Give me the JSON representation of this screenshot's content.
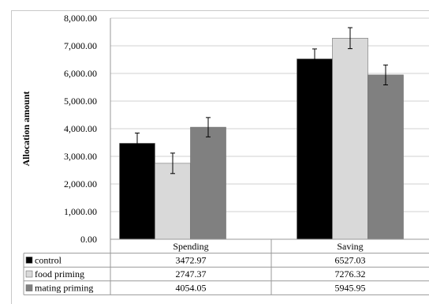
{
  "chart_data": {
    "type": "bar",
    "title": "",
    "xlabel": "",
    "ylabel": "Allocation amount",
    "ylim": [
      0,
      8000
    ],
    "y_ticks": [
      "0.00",
      "1,000.00",
      "2,000.00",
      "3,000.00",
      "4,000.00",
      "5,000.00",
      "6,000.00",
      "7,000.00",
      "8,000.00"
    ],
    "y_tick_values": [
      0,
      1000,
      2000,
      3000,
      4000,
      5000,
      6000,
      7000,
      8000
    ],
    "categories": [
      "Spending",
      "Saving"
    ],
    "grid": true,
    "legend": "data table below chart",
    "series": [
      {
        "name": "control",
        "color": "#000000",
        "values": [
          3472.97,
          6527.03
        ],
        "value_labels": [
          "3472.97",
          "6527.03"
        ],
        "error": [
          370,
          360
        ]
      },
      {
        "name": "food priming",
        "color": "#d9d9d9",
        "values": [
          2747.37,
          7276.32
        ],
        "value_labels": [
          "2747.37",
          "7276.32"
        ],
        "error": [
          370,
          380
        ]
      },
      {
        "name": "mating priming",
        "color": "#808080",
        "values": [
          4054.05,
          5945.95
        ],
        "value_labels": [
          "4054.05",
          "5945.95"
        ],
        "error": [
          350,
          360
        ]
      }
    ]
  }
}
